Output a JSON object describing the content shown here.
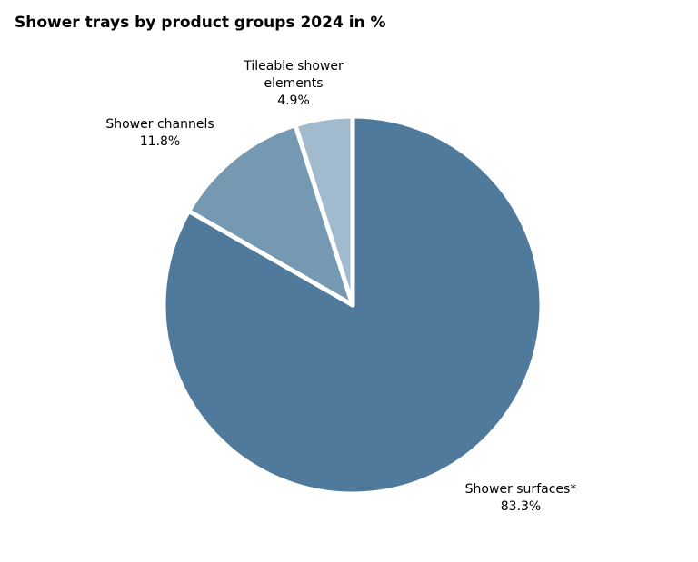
{
  "chart_data": {
    "type": "pie",
    "title": "Shower trays by product groups 2024 in %",
    "unit": "%",
    "slices": [
      {
        "label": "Shower surfaces*",
        "value": 83.3,
        "value_label": "83.3%",
        "color": "#4f7a9c"
      },
      {
        "label": "Shower channels",
        "value": 11.8,
        "value_label": "11.8%",
        "color": "#7699b3"
      },
      {
        "label": "Tileable shower elements",
        "value": 4.9,
        "value_label": "4.9%",
        "color": "#a2bace"
      }
    ],
    "start": "12 o'clock",
    "direction": "clockwise",
    "slice_separator_color": "#ffffff",
    "legend": "none"
  }
}
